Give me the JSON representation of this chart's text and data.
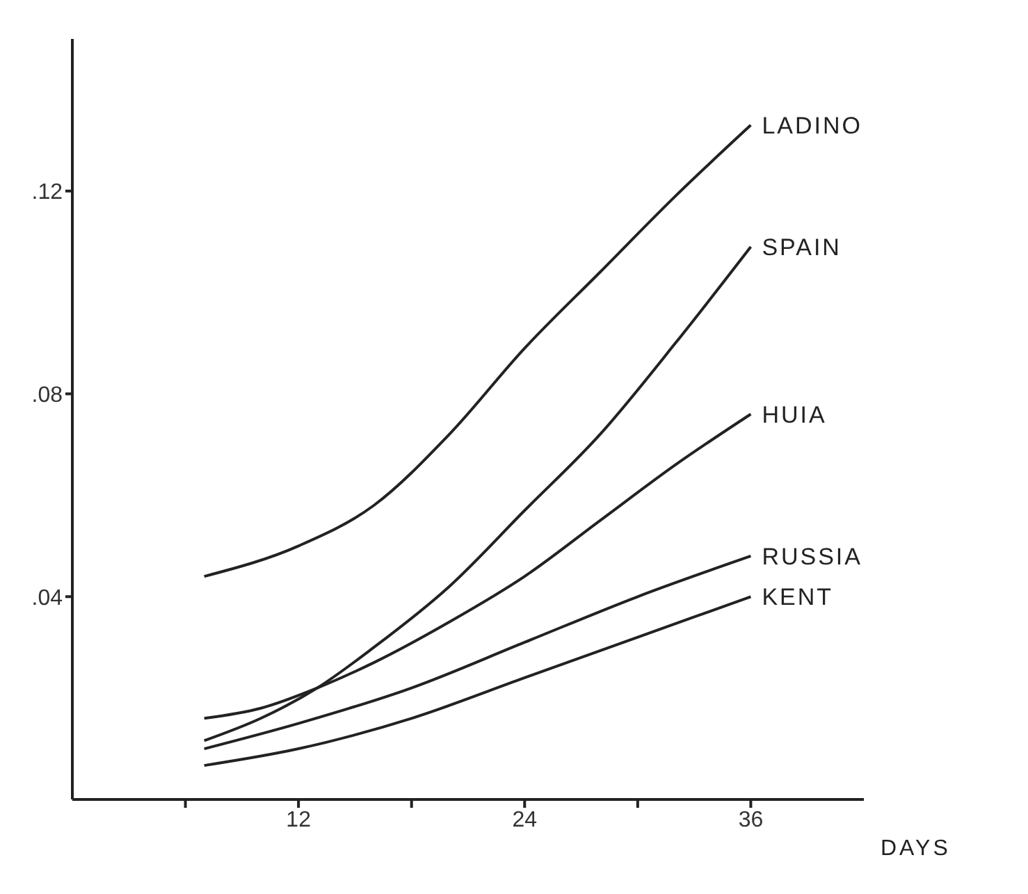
{
  "chart_data": {
    "type": "line",
    "xlabel": "DAYS",
    "xlim": [
      0,
      42
    ],
    "ylim": [
      0,
      0.15
    ],
    "xticks": [
      {
        "value": 6,
        "label": null
      },
      12,
      {
        "value": 18,
        "label": null
      },
      24,
      {
        "value": 30,
        "label": null
      },
      36
    ],
    "yticks": [
      {
        "value": 0.04,
        "label": ".04"
      },
      {
        "value": 0.08,
        "label": ".08"
      },
      {
        "value": 0.12,
        "label": ".12"
      }
    ],
    "grid": false,
    "legend": false,
    "marker": "none",
    "line_style": "solid",
    "series": [
      {
        "name": "LADINO",
        "color": "#222222",
        "x": [
          7,
          12,
          16,
          20,
          24,
          28,
          32,
          36
        ],
        "values": [
          0.044,
          0.05,
          0.058,
          0.072,
          0.089,
          0.104,
          0.119,
          0.133
        ]
      },
      {
        "name": "SPAIN",
        "color": "#222222",
        "x": [
          7,
          10,
          13,
          16,
          20,
          24,
          28,
          32,
          36
        ],
        "values": [
          0.0116,
          0.016,
          0.022,
          0.03,
          0.042,
          0.057,
          0.072,
          0.09,
          0.109
        ]
      },
      {
        "name": "HUIA",
        "color": "#222222",
        "x": [
          7,
          10,
          13,
          16,
          20,
          24,
          28,
          32,
          36
        ],
        "values": [
          0.016,
          0.018,
          0.022,
          0.027,
          0.035,
          0.044,
          0.055,
          0.066,
          0.076
        ]
      },
      {
        "name": "RUSSIA",
        "color": "#222222",
        "x": [
          7,
          12,
          18,
          24,
          30,
          36
        ],
        "values": [
          0.01,
          0.015,
          0.022,
          0.031,
          0.04,
          0.048
        ]
      },
      {
        "name": "KENT",
        "color": "#222222",
        "x": [
          7,
          12,
          18,
          24,
          30,
          36
        ],
        "values": [
          0.0067,
          0.01,
          0.016,
          0.024,
          0.032,
          0.04
        ]
      }
    ]
  }
}
